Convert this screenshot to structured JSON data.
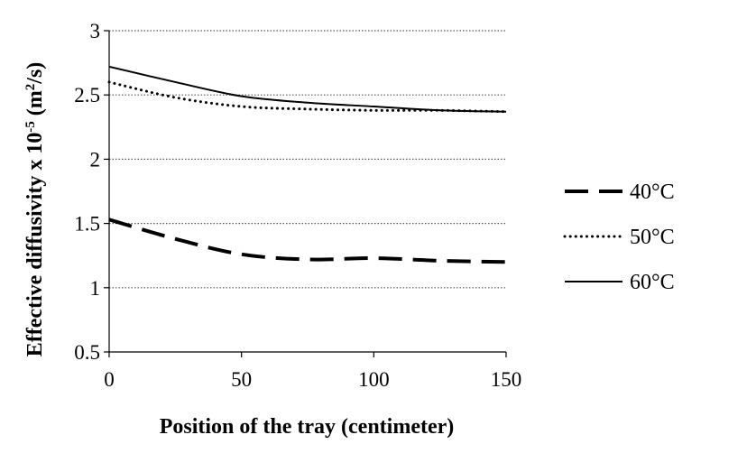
{
  "chart_data": {
    "type": "line",
    "title": "",
    "xlabel": "Position of the tray (centimeter)",
    "ylabel_main": "Effective diffusivity x 10",
    "ylabel_exponent": "-5",
    "ylabel_unit_open": " (m",
    "ylabel_unit_exponent": "2",
    "ylabel_unit_close": "/s)",
    "xlim": [
      0,
      150
    ],
    "ylim": [
      0.5,
      3
    ],
    "x_ticks": [
      0,
      50,
      100,
      150
    ],
    "x_tick_labels": [
      "0",
      "50",
      "100",
      "150"
    ],
    "y_ticks": [
      0.5,
      1,
      1.5,
      2,
      2.5,
      3
    ],
    "y_tick_labels": [
      "0.5",
      "1",
      "1.5",
      "2",
      "2.5",
      "3"
    ],
    "grid": "horizontal dotted",
    "legend_position": "right",
    "series": [
      {
        "name": "40°C",
        "style": "dashed",
        "x": [
          0,
          25,
          50,
          75,
          100,
          125,
          150
        ],
        "y": [
          1.53,
          1.38,
          1.26,
          1.22,
          1.23,
          1.21,
          1.2
        ]
      },
      {
        "name": "50°C",
        "style": "dotted",
        "x": [
          0,
          25,
          50,
          75,
          100,
          125,
          150
        ],
        "y": [
          2.6,
          2.48,
          2.41,
          2.39,
          2.38,
          2.38,
          2.37
        ]
      },
      {
        "name": "60°C",
        "style": "solid",
        "x": [
          0,
          25,
          50,
          75,
          100,
          125,
          150
        ],
        "y": [
          2.72,
          2.6,
          2.49,
          2.44,
          2.41,
          2.38,
          2.37
        ]
      }
    ]
  }
}
